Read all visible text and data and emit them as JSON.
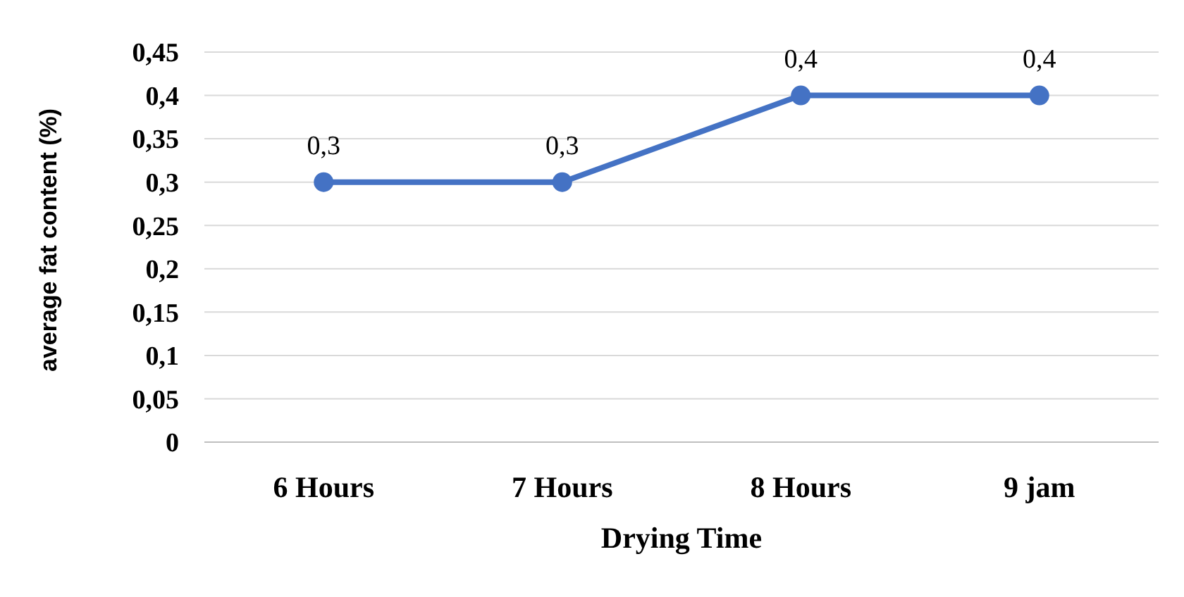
{
  "chart_data": {
    "type": "line",
    "xlabel": "Drying Time",
    "ylabel": "average fat content (%)",
    "categories": [
      "6 Hours",
      "7 Hours",
      "8 Hours",
      "9 jam"
    ],
    "series": [
      {
        "color": "#4472c4",
        "values": [
          0.3,
          0.3,
          0.4,
          0.4
        ],
        "value_labels": [
          "0,3",
          "0,3",
          "0,4",
          "0,4"
        ]
      }
    ],
    "ylim": [
      0,
      0.45
    ],
    "yticks": [
      {
        "value": 0,
        "label": "0"
      },
      {
        "value": 0.05,
        "label": "0,05"
      },
      {
        "value": 0.1,
        "label": "0,1"
      },
      {
        "value": 0.15,
        "label": "0,15"
      },
      {
        "value": 0.2,
        "label": "0,2"
      },
      {
        "value": 0.25,
        "label": "0,25"
      },
      {
        "value": 0.3,
        "label": "0,3"
      },
      {
        "value": 0.35,
        "label": "0,35"
      },
      {
        "value": 0.4,
        "label": "0,4"
      },
      {
        "value": 0.45,
        "label": "0,45"
      }
    ],
    "grid": "y",
    "marker": "circle",
    "line_style": "solid"
  }
}
